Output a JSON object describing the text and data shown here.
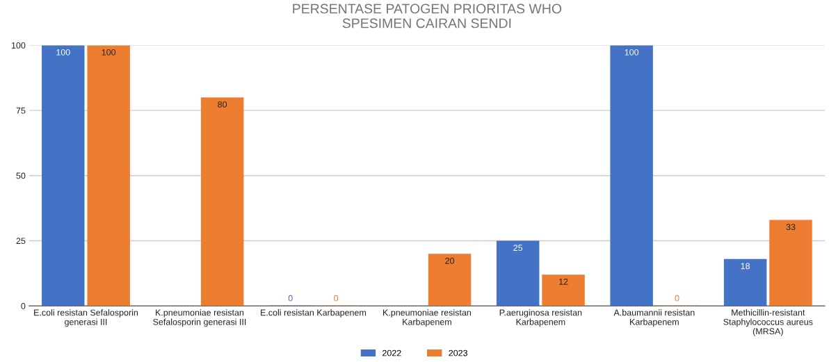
{
  "chart_data": {
    "type": "bar",
    "title": "PERSENTASE PATOGEN PRIORITAS WHO\nSPESIMEN CAIRAN SENDI",
    "categories": [
      "E.coli resistan Sefalosporin\ngenerasi III",
      "K.pneumoniae resistan\nSefalosporin generasi III",
      "E.coli resistan Karbapenem",
      "K.pneumoniae resistan\nKarbapenem",
      "P.aeruginosa resistan\nKarbapenem",
      "A.baumannii resistan\nKarbapenem",
      "Methicillin-resistant\nStaphylococcus aureus\n(MRSA)"
    ],
    "series": [
      {
        "name": "2022",
        "color": "#4472c4",
        "values": [
          100,
          null,
          0,
          null,
          25,
          100,
          18
        ]
      },
      {
        "name": "2023",
        "color": "#ed7d31",
        "values": [
          100,
          80,
          0,
          20,
          12,
          0,
          33
        ]
      }
    ],
    "ylim": [
      0,
      100
    ],
    "yticks": [
      0,
      25,
      50,
      75,
      100
    ],
    "grid": "y",
    "legend": "bottom",
    "data_labels": true
  }
}
